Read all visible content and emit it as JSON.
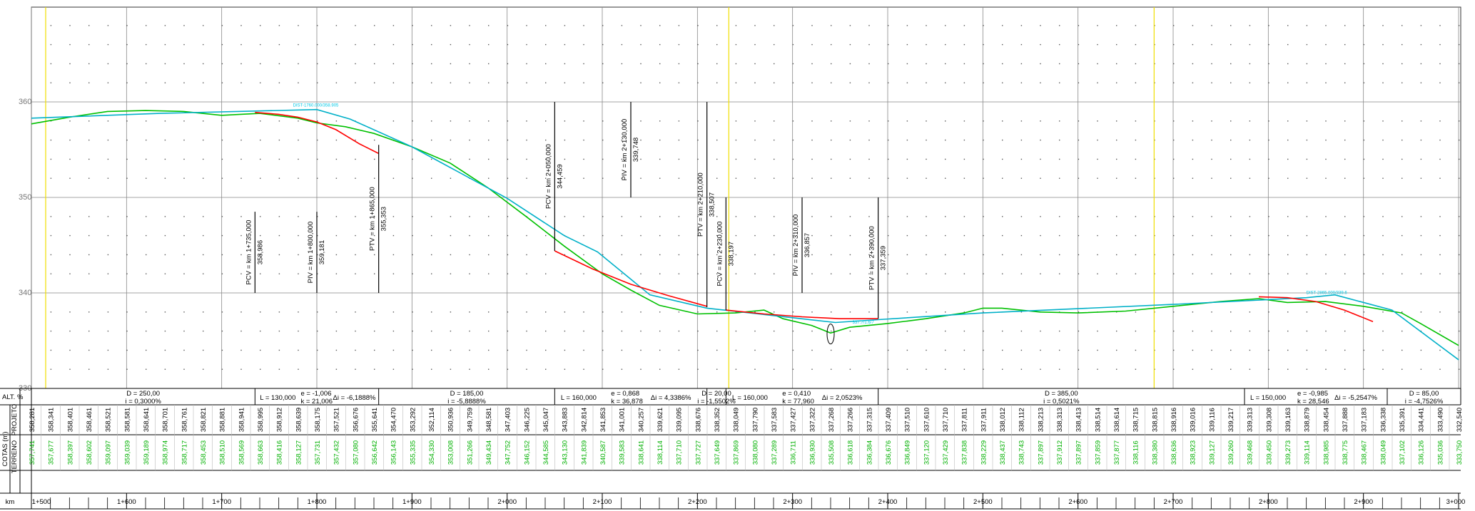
{
  "chart_data": {
    "type": "line",
    "title": "",
    "y_ticks": [
      "360",
      "350",
      "340",
      "330"
    ],
    "ylim": [
      330,
      370
    ],
    "xlim_m": [
      1500,
      3000
    ],
    "series": [
      {
        "name": "",
        "color": "#00c000",
        "points": [
          [
            1500,
            357.7
          ],
          [
            1540,
            358.4
          ],
          [
            1580,
            359.0
          ],
          [
            1620,
            359.1
          ],
          [
            1660,
            359.0
          ],
          [
            1700,
            358.6
          ],
          [
            1740,
            358.8
          ],
          [
            1780,
            358.3
          ],
          [
            1800,
            357.8
          ],
          [
            1830,
            357.4
          ],
          [
            1860,
            356.7
          ],
          [
            1880,
            356.0
          ],
          [
            1900,
            355.3
          ],
          [
            1940,
            353.6
          ],
          [
            1980,
            351.0
          ],
          [
            2020,
            348.0
          ],
          [
            2060,
            344.9
          ],
          [
            2100,
            342.0
          ],
          [
            2130,
            340.3
          ],
          [
            2160,
            338.7
          ],
          [
            2200,
            337.8
          ],
          [
            2240,
            337.9
          ],
          [
            2270,
            338.2
          ],
          [
            2290,
            337.3
          ],
          [
            2320,
            336.6
          ],
          [
            2340,
            335.8
          ],
          [
            2360,
            336.4
          ],
          [
            2400,
            336.8
          ],
          [
            2440,
            337.3
          ],
          [
            2480,
            337.9
          ],
          [
            2500,
            338.4
          ],
          [
            2520,
            338.4
          ],
          [
            2560,
            338.0
          ],
          [
            2600,
            337.9
          ],
          [
            2650,
            338.1
          ],
          [
            2700,
            338.6
          ],
          [
            2750,
            339.1
          ],
          [
            2790,
            339.4
          ],
          [
            2820,
            339.0
          ],
          [
            2860,
            339.1
          ],
          [
            2900,
            338.6
          ],
          [
            2940,
            337.9
          ],
          [
            2960,
            336.8
          ],
          [
            3000,
            334.5
          ]
        ]
      },
      {
        "name": "",
        "color": "#00b0c8",
        "points": [
          [
            1500,
            358.3
          ],
          [
            1635,
            358.8
          ],
          [
            1800,
            359.2
          ],
          [
            1835,
            358.2
          ],
          [
            1900,
            355.3
          ],
          [
            2000,
            349.9
          ],
          [
            2060,
            346.0
          ],
          [
            2095,
            344.3
          ],
          [
            2150,
            339.8
          ],
          [
            2210,
            338.4
          ],
          [
            2300,
            337.4
          ],
          [
            2345,
            336.9
          ],
          [
            2390,
            337.2
          ],
          [
            2500,
            337.9
          ],
          [
            2700,
            338.8
          ],
          [
            2840,
            339.5
          ],
          [
            2870,
            339.8
          ],
          [
            2930,
            338.2
          ],
          [
            3000,
            333.0
          ]
        ]
      },
      {
        "name": "",
        "color": "#ff0000",
        "points": [
          [
            1735,
            358.9
          ],
          [
            1760,
            358.7
          ],
          [
            1780,
            358.4
          ],
          [
            1800,
            357.9
          ],
          [
            1820,
            357.1
          ],
          [
            1845,
            355.6
          ],
          [
            1865,
            354.6
          ]
        ]
      },
      {
        "name": "",
        "color": "#ff0000",
        "points": [
          [
            2050,
            344.4
          ],
          [
            2090,
            342.5
          ],
          [
            2130,
            340.9
          ],
          [
            2170,
            339.7
          ],
          [
            2210,
            338.6
          ]
        ]
      },
      {
        "name": "",
        "color": "#ff0000",
        "points": [
          [
            2230,
            338.2
          ],
          [
            2270,
            337.8
          ],
          [
            2310,
            337.5
          ],
          [
            2350,
            337.3
          ],
          [
            2390,
            337.3
          ]
        ]
      },
      {
        "name": "",
        "color": "#ff0000",
        "points": [
          [
            2790,
            339.6
          ],
          [
            2820,
            339.5
          ],
          [
            2850,
            339.1
          ],
          [
            2880,
            338.2
          ],
          [
            2910,
            337.0
          ]
        ]
      }
    ],
    "vertex_labels": [
      {
        "text": "PCV = km 1+735,000",
        "elev": "358,986",
        "x": 1735,
        "y_top": 348.5,
        "y_bottom": 340.0
      },
      {
        "text": "PIV = km 1+800,000",
        "elev": "359,181",
        "x": 1800,
        "y_top": 348.5,
        "y_bottom": 340.0
      },
      {
        "text": "PTV = km 1+865,000",
        "elev": "355,353",
        "x": 1865,
        "y_top": 355.5,
        "y_bottom": 340.0
      },
      {
        "text": "PCV = km 2+050,000",
        "elev": "344,459",
        "x": 2050,
        "y_top": 360.0,
        "y_bottom": 344.4
      },
      {
        "text": "PIV = km 2+130,000",
        "elev": "339,748",
        "x": 2130,
        "y_top": 360.0,
        "y_bottom": 350.0
      },
      {
        "text": "PTV = km 2+210,000",
        "elev": "338,507",
        "x": 2210,
        "y_top": 360.0,
        "y_bottom": 338.5
      },
      {
        "text": "PCV = km 2+230,000",
        "elev": "338,197",
        "x": 2230,
        "y_top": 350.0,
        "y_bottom": 338.2
      },
      {
        "text": "PIV = km 2+310,000",
        "elev": "336,857",
        "x": 2310,
        "y_top": 350.0,
        "y_bottom": 340.0
      },
      {
        "text": "PTV = km 2+390,000",
        "elev": "337,359",
        "x": 2390,
        "y_top": 350.0,
        "y_bottom": 337.3
      }
    ],
    "yellow_lines_x": [
      1515,
      2233,
      2680
    ],
    "small_labels": [
      {
        "text": "DIST-1760.000/358.905",
        "x": 1775,
        "y": 359.5,
        "color": "#00c8e6"
      },
      {
        "text": "337.7/1.6/7",
        "x": 2363,
        "y": 336.8,
        "color": "#00c8e6"
      },
      {
        "text": "DIST-2865.000/339.6",
        "x": 2840,
        "y": 339.9,
        "color": "#00c8e6"
      }
    ]
  },
  "table": {
    "row_labels": {
      "alt": "ALT. %",
      "cotas": "COTAS (m)",
      "projeto": "PROJETO",
      "terreno": "TERRENO",
      "km": "km"
    },
    "alt_cells": [
      {
        "x_from": 1500,
        "x_to": 1735,
        "lines": [
          "D = 250,00",
          "i = 0,3000%"
        ],
        "center": true
      },
      {
        "x_from": 1735,
        "x_to": 1865,
        "lines": [
          "L = 130,000",
          "e = -1,006",
          "k = 21,006",
          "Δi = -6,1888%"
        ],
        "center": false
      },
      {
        "x_from": 1865,
        "x_to": 2050,
        "lines": [
          "D = 185,00",
          "i = -5,8888%"
        ],
        "center": true
      },
      {
        "x_from": 2050,
        "x_to": 2210,
        "lines": [
          "L = 160,000",
          "e = 0,868",
          "k = 36,878",
          "Δi = 4,3386%"
        ],
        "center": false
      },
      {
        "x_from": 2210,
        "x_to": 2230,
        "lines": [
          "D = 20,00",
          "i = -1,5502%"
        ],
        "center": true
      },
      {
        "x_from": 2230,
        "x_to": 2390,
        "lines": [
          "L = 160,000",
          "e = 0,410",
          "k = 77,960",
          "Δi = 2,0523%"
        ],
        "center": false
      },
      {
        "x_from": 2390,
        "x_to": 2775,
        "lines": [
          "D = 385,00",
          "i = 0,5021%"
        ],
        "center": true
      },
      {
        "x_from": 2775,
        "x_to": 2925,
        "lines": [
          "L = 150,000",
          "e = -0,985",
          "k = 28,546",
          "Δi = -5,2547%"
        ],
        "center": false
      },
      {
        "x_from": 2925,
        "x_to": 3010,
        "lines": [
          "D = 85,00",
          "i = -4,7526%"
        ],
        "center": true
      }
    ],
    "projeto": [
      "358,281",
      "358,341",
      "358,401",
      "358,461",
      "358,521",
      "358,581",
      "358,641",
      "358,701",
      "358,761",
      "358,821",
      "358,881",
      "358,941",
      "358,995",
      "358,912",
      "358,639",
      "358,175",
      "357,521",
      "356,676",
      "355,641",
      "354,470",
      "353,292",
      "352,114",
      "350,936",
      "349,759",
      "348,581",
      "347,403",
      "346,225",
      "345,047",
      "343,883",
      "342,814",
      "341,853",
      "341,001",
      "340,257",
      "339,621",
      "339,095",
      "338,676",
      "338,352",
      "338,049",
      "337,790",
      "337,583",
      "337,427",
      "337,322",
      "337,268",
      "337,266",
      "337,315",
      "337,409",
      "337,510",
      "337,610",
      "337,710",
      "337,811",
      "337,911",
      "338,012",
      "338,112",
      "338,213",
      "338,313",
      "338,413",
      "338,514",
      "338,614",
      "338,715",
      "338,815",
      "338,916",
      "339,016",
      "339,116",
      "339,217",
      "339,313",
      "339,308",
      "339,163",
      "338,879",
      "338,454",
      "337,888",
      "337,183",
      "336,338",
      "335,391",
      "334,441",
      "333,490",
      "332,540"
    ],
    "terreno": [
      "357,741",
      "357,677",
      "358,397",
      "358,602",
      "359,097",
      "359,039",
      "359,189",
      "358,974",
      "358,717",
      "358,453",
      "358,510",
      "358,569",
      "358,663",
      "358,416",
      "358,127",
      "357,731",
      "357,432",
      "357,080",
      "356,642",
      "356,143",
      "355,335",
      "354,330",
      "353,008",
      "351,266",
      "349,434",
      "347,752",
      "346,152",
      "344,585",
      "343,130",
      "341,839",
      "340,587",
      "339,583",
      "338,641",
      "338,114",
      "337,710",
      "337,727",
      "337,649",
      "337,869",
      "338,080",
      "337,289",
      "336,711",
      "336,930",
      "335,508",
      "336,618",
      "336,384",
      "336,676",
      "336,849",
      "337,120",
      "337,429",
      "337,838",
      "338,229",
      "338,437",
      "338,743",
      "337,897",
      "337,912",
      "337,897",
      "337,859",
      "337,877",
      "338,116",
      "338,380",
      "338,636",
      "338,923",
      "339,127",
      "339,260",
      "339,468",
      "339,450",
      "339,273",
      "339,114",
      "338,985",
      "338,775",
      "338,467",
      "338,049",
      "337,102",
      "336,126",
      "335,036",
      "333,750"
    ],
    "km_labels": [
      "1+500",
      "1+600",
      "1+700",
      "1+800",
      "1+900",
      "2+000",
      "2+100",
      "2+200",
      "2+300",
      "2+400",
      "2+500",
      "2+600",
      "2+700",
      "2+800",
      "2+900",
      "3+000"
    ]
  }
}
